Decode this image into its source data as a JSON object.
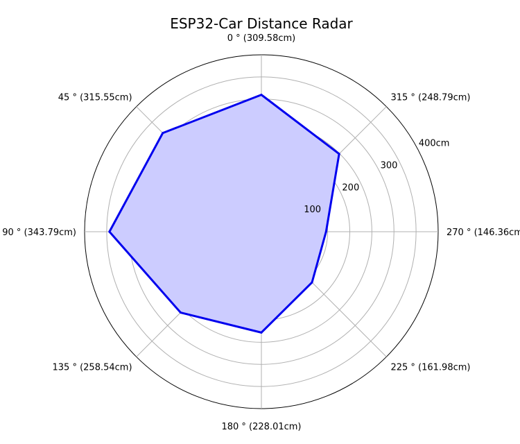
{
  "chart_data": {
    "type": "radar",
    "title": "ESP32-Car Distance Radar",
    "angles_deg": [
      0,
      315,
      270,
      225,
      180,
      135,
      90,
      45
    ],
    "categories": [
      "0 ° (309.58cm)",
      "315 ° (248.79cm)",
      "270 ° (146.36cm)",
      "225 ° (161.98cm)",
      "180 ° (228.01cm)",
      "135 ° (258.54cm)",
      "90 ° (343.79cm)",
      "45 ° (315.55cm)"
    ],
    "series": [
      {
        "values": [
          309.58,
          248.79,
          146.36,
          161.98,
          228.01,
          258.54,
          343.79,
          315.55
        ],
        "color": "#0000ee",
        "fill": "#ccccff"
      }
    ],
    "rlim": [
      0,
      400
    ],
    "r_ticks": [
      100,
      200,
      300,
      400
    ],
    "r_tick_labels": [
      "100",
      "200",
      "300",
      "400cm"
    ],
    "grid": true,
    "grid_color": "#b0b0b0"
  }
}
